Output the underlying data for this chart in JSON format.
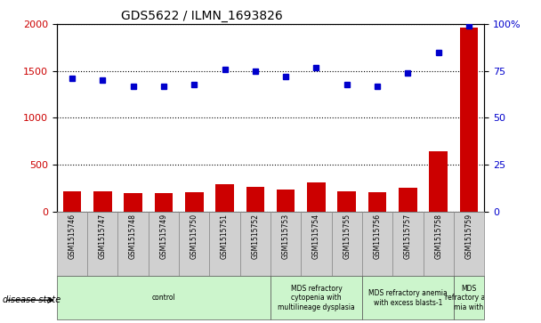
{
  "title": "GDS5622 / ILMN_1693826",
  "samples": [
    "GSM1515746",
    "GSM1515747",
    "GSM1515748",
    "GSM1515749",
    "GSM1515750",
    "GSM1515751",
    "GSM1515752",
    "GSM1515753",
    "GSM1515754",
    "GSM1515755",
    "GSM1515756",
    "GSM1515757",
    "GSM1515758",
    "GSM1515759"
  ],
  "counts": [
    220,
    220,
    200,
    195,
    210,
    290,
    260,
    240,
    310,
    215,
    210,
    255,
    640,
    1960
  ],
  "percentile_ranks": [
    71,
    70,
    67,
    67,
    68,
    76,
    75,
    72,
    77,
    68,
    67,
    74,
    85,
    99
  ],
  "ylim_left": [
    0,
    2000
  ],
  "ylim_right": [
    0,
    100
  ],
  "yticks_left": [
    0,
    500,
    1000,
    1500,
    2000
  ],
  "yticks_right": [
    0,
    25,
    50,
    75,
    100
  ],
  "bar_color": "#cc0000",
  "dot_color": "#0000cc",
  "bg_color_axis": "#ffffff",
  "bg_color_label": "#d0d0d0",
  "left_label_color": "#cc0000",
  "right_label_color": "#0000cc",
  "disease_groups": [
    {
      "label": "control",
      "start": 0,
      "end": 7
    },
    {
      "label": "MDS refractory\ncytopenia with\nmultilineage dysplasia",
      "start": 7,
      "end": 10
    },
    {
      "label": "MDS refractory anemia\nwith excess blasts-1",
      "start": 10,
      "end": 13
    },
    {
      "label": "MDS\nrefractory ane\nmia with",
      "start": 13,
      "end": 14
    }
  ],
  "disease_bg_color": "#ccf5cc",
  "legend_count_color": "#cc0000",
  "legend_pct_color": "#0000cc"
}
